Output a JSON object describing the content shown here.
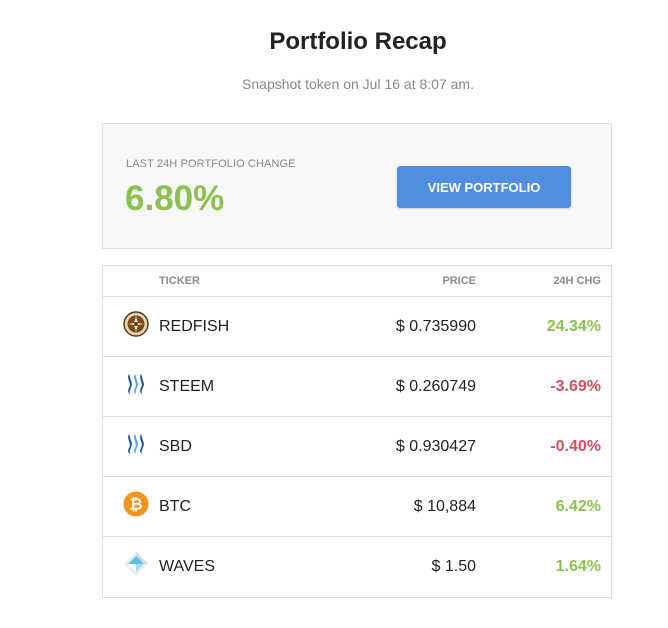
{
  "header": {
    "title": "Portfolio Recap",
    "subtitle": "Snapshot token on Jul 16 at 8:07 am."
  },
  "summary": {
    "label": "LAST 24H PORTFOLIO CHANGE",
    "value": "6.80%",
    "button_label": "VIEW PORTFOLIO",
    "value_color": "#8cc152",
    "button_color": "#4f8ee0"
  },
  "table": {
    "columns": {
      "ticker": "TICKER",
      "price": "PRICE",
      "change": "24H CHG"
    },
    "rows": [
      {
        "icon": "redfish-logo-icon",
        "ticker": "REDFISH",
        "price": "$ 0.735990",
        "change": "24.34%",
        "direction": "positive"
      },
      {
        "icon": "steem-logo-icon",
        "ticker": "STEEM",
        "price": "$ 0.260749",
        "change": "-3.69%",
        "direction": "negative"
      },
      {
        "icon": "sbd-logo-icon",
        "ticker": "SBD",
        "price": "$ 0.930427",
        "change": "-0.40%",
        "direction": "negative"
      },
      {
        "icon": "bitcoin-logo-icon",
        "ticker": "BTC",
        "price": "$ 10,884",
        "change": "6.42%",
        "direction": "positive"
      },
      {
        "icon": "waves-logo-icon",
        "ticker": "WAVES",
        "price": "$ 1.50",
        "change": "1.64%",
        "direction": "positive"
      }
    ]
  },
  "colors": {
    "positive": "#8cc152",
    "negative": "#d94f5c"
  }
}
